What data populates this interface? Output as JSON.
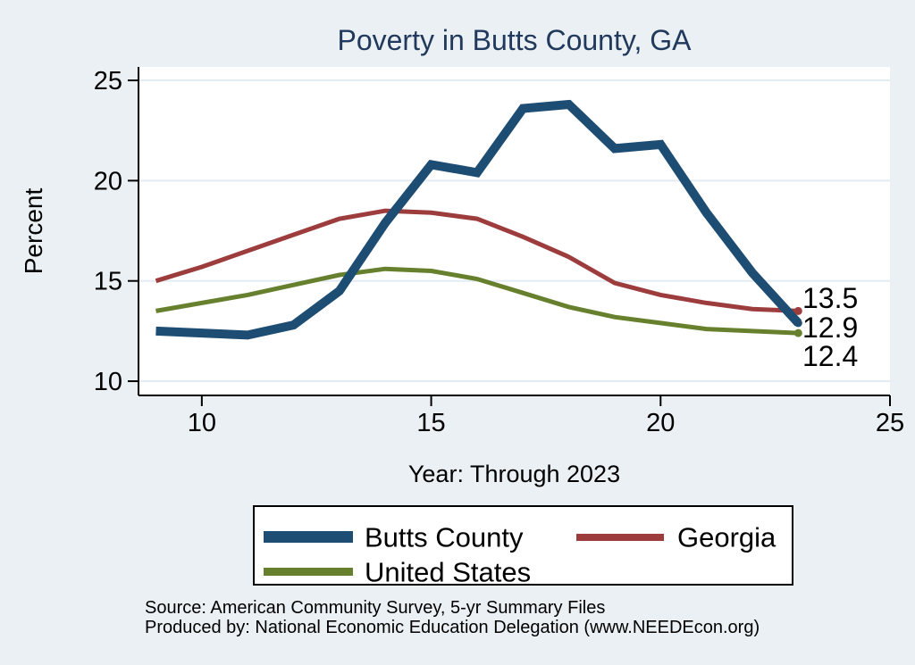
{
  "title": "Poverty in Butts County, GA",
  "chart_data": {
    "type": "line",
    "x": [
      9,
      10,
      11,
      12,
      13,
      14,
      15,
      16,
      17,
      18,
      19,
      20,
      21,
      22,
      23
    ],
    "x_ticks": [
      10,
      15,
      20,
      25
    ],
    "y_ticks": [
      10,
      15,
      20,
      25
    ],
    "xlim": [
      8.62,
      25
    ],
    "ylim": [
      9.29,
      25.67
    ],
    "xlabel": "Year: Through 2023",
    "ylabel": "Percent",
    "grid": true,
    "legend_position": "below-plot",
    "series": [
      {
        "name": "Butts County",
        "color": "#1e4d73",
        "line_width": 10,
        "values": [
          12.5,
          12.4,
          12.3,
          12.8,
          14.5,
          17.9,
          20.8,
          20.4,
          23.6,
          23.8,
          21.6,
          21.8,
          18.4,
          15.4,
          12.9
        ]
      },
      {
        "name": "Georgia",
        "color": "#9d3c3d",
        "line_width": 5,
        "values": [
          15.0,
          15.7,
          16.5,
          17.3,
          18.1,
          18.5,
          18.4,
          18.1,
          17.2,
          16.2,
          14.9,
          14.3,
          13.9,
          13.6,
          13.5
        ]
      },
      {
        "name": "United States",
        "color": "#66802e",
        "line_width": 5,
        "values": [
          13.5,
          13.9,
          14.3,
          14.8,
          15.3,
          15.6,
          15.5,
          15.1,
          14.4,
          13.7,
          13.2,
          12.9,
          12.6,
          12.5,
          12.4
        ]
      }
    ],
    "end_labels": [
      {
        "text": "13.5",
        "series": "Georgia"
      },
      {
        "text": "12.9",
        "series": "Butts County"
      },
      {
        "text": "12.4",
        "series": "United States"
      }
    ]
  },
  "footer": {
    "source_line": "Source: American Community Survey, 5-yr Summary Files",
    "produced_line": "Produced by: National Economic Education Delegation (www.NEEDEcon.org)"
  },
  "colors": {
    "background": "#eaf0f3",
    "plot_background": "#ffffff",
    "gridline": "#e3ecf3",
    "axis": "#000000",
    "title": "#21395c",
    "text": "#000000"
  }
}
